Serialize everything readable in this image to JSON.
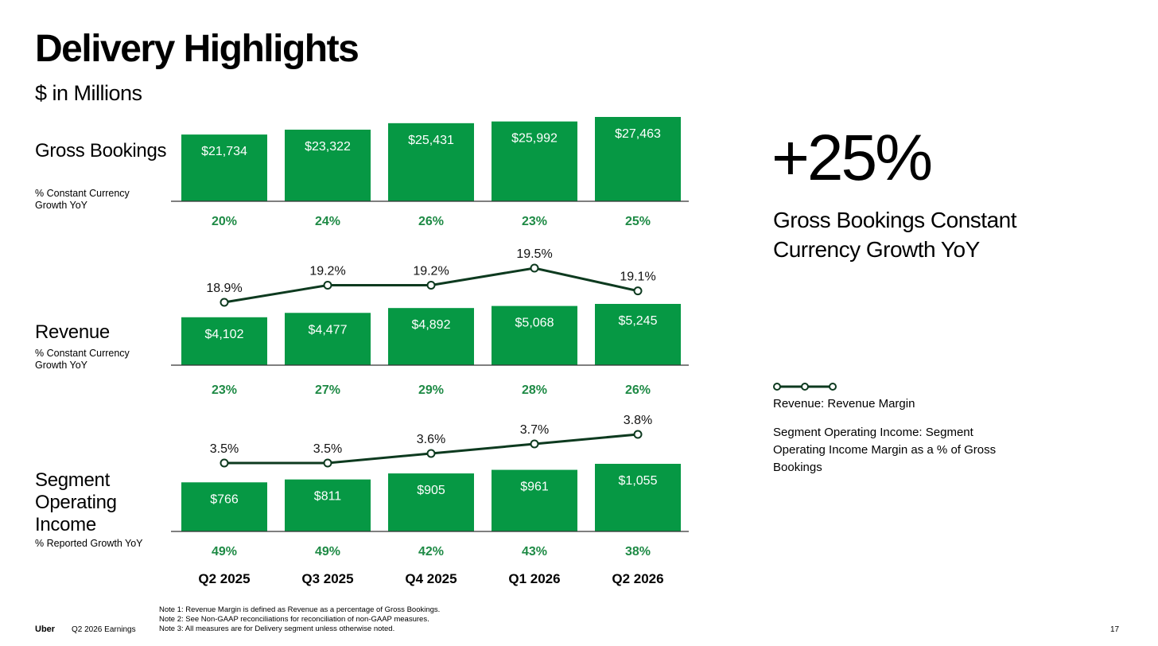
{
  "slide": {
    "title": "Delivery Highlights",
    "subtitle": "$ in Millions",
    "big_number": "+25%",
    "big_caption": "Gross Bookings Constant Currency Growth YoY",
    "legend": {
      "revenue": "Revenue: Revenue Margin",
      "segment": "Segment Operating Income: Segment Operating Income Margin as a % of Gross Bookings"
    },
    "notes": [
      "Note 1: Revenue Margin is defined as Revenue as a percentage of Gross Bookings.",
      "Note 2: See Non-GAAP reconciliations for reconciliation of non-GAAP measures.",
      "Note 3: All measures are for Delivery segment unless otherwise noted."
    ],
    "footer": {
      "brand": "Uber",
      "report": "Q2 2026 Earnings",
      "page": "17"
    },
    "rows": [
      {
        "label": "Gross Bookings",
        "sublabel": "% Constant Currency Growth YoY"
      },
      {
        "label": "Revenue",
        "sublabel": "% Constant Currency Growth YoY"
      },
      {
        "label": "Segment Operating Income",
        "sublabel": "% Reported Growth YoY"
      }
    ]
  },
  "colors": {
    "bar": "#069844",
    "line": "#0d3a1f",
    "growth": "#1e8a45",
    "axis": "#333333"
  },
  "chart_data": [
    {
      "type": "bar",
      "title": "Gross Bookings",
      "categories": [
        "Q2 2025",
        "Q3 2025",
        "Q4 2025",
        "Q1 2026",
        "Q2 2026"
      ],
      "values": [
        21734,
        23322,
        25431,
        25992,
        27463
      ],
      "value_labels": [
        "$21,734",
        "$23,322",
        "$25,431",
        "$25,992",
        "$27,463"
      ],
      "growth_labels": [
        "20%",
        "24%",
        "26%",
        "23%",
        "25%"
      ],
      "ylim": [
        0,
        27463
      ]
    },
    {
      "type": "bar",
      "title": "Revenue",
      "categories": [
        "Q2 2025",
        "Q3 2025",
        "Q4 2025",
        "Q1 2026",
        "Q2 2026"
      ],
      "values": [
        4102,
        4477,
        4892,
        5068,
        5245
      ],
      "value_labels": [
        "$4,102",
        "$4,477",
        "$4,892",
        "$5,068",
        "$5,245"
      ],
      "growth_labels": [
        "23%",
        "27%",
        "29%",
        "28%",
        "26%"
      ],
      "ylim": [
        0,
        5245
      ],
      "line": {
        "values": [
          18.9,
          19.2,
          19.2,
          19.5,
          19.1
        ],
        "labels": [
          "18.9%",
          "19.2%",
          "19.2%",
          "19.5%",
          "19.1%"
        ],
        "ylim": [
          18.9,
          19.5
        ]
      }
    },
    {
      "type": "bar",
      "title": "Segment Operating Income",
      "categories": [
        "Q2 2025",
        "Q3 2025",
        "Q4 2025",
        "Q1 2026",
        "Q2 2026"
      ],
      "values": [
        766,
        811,
        905,
        961,
        1055
      ],
      "value_labels": [
        "$766",
        "$811",
        "$905",
        "$961",
        "$1,055"
      ],
      "growth_labels": [
        "49%",
        "49%",
        "42%",
        "43%",
        "38%"
      ],
      "ylim": [
        0,
        1055
      ],
      "line": {
        "values": [
          3.5,
          3.5,
          3.6,
          3.7,
          3.8
        ],
        "labels": [
          "3.5%",
          "3.5%",
          "3.6%",
          "3.7%",
          "3.8%"
        ],
        "ylim": [
          3.5,
          3.8
        ]
      }
    }
  ]
}
